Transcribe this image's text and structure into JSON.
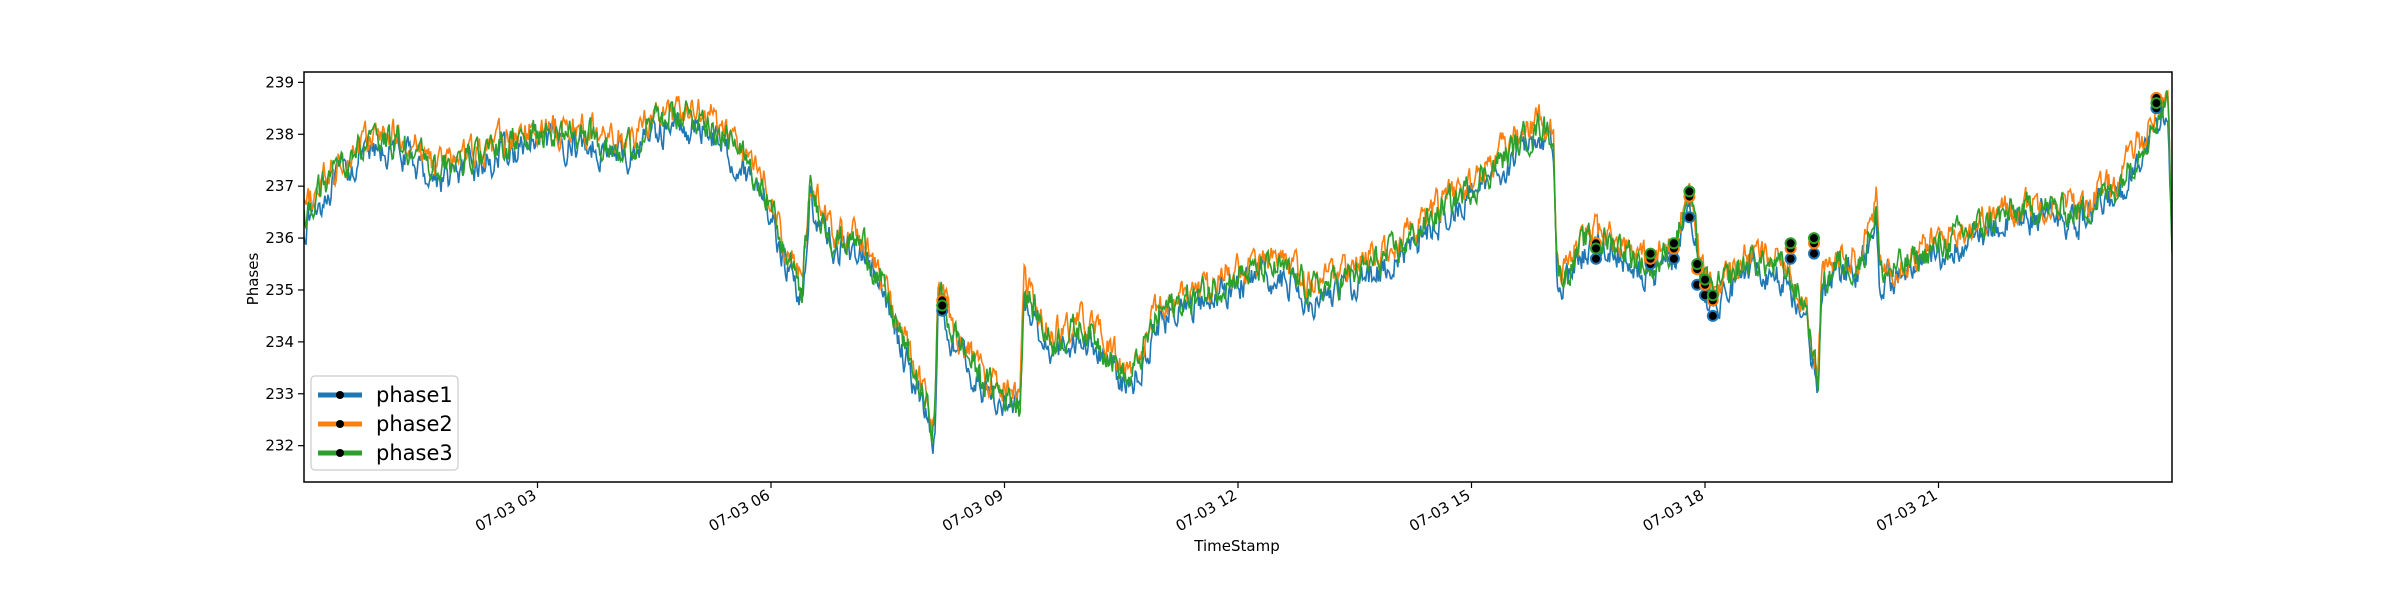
{
  "chart_data": {
    "type": "line",
    "title": "",
    "xlabel": "TimeStamp",
    "ylabel": "Phases",
    "x_ticks": [
      "07-03 03",
      "07-03 06",
      "07-03 09",
      "07-03 12",
      "07-03 15",
      "07-03 18",
      "07-03 21"
    ],
    "x_tick_hours": [
      3,
      6,
      9,
      12,
      15,
      18,
      21
    ],
    "xlim_hours": [
      0.0,
      24.0
    ],
    "y_ticks": [
      232,
      233,
      234,
      235,
      236,
      237,
      238,
      239
    ],
    "ylim": [
      231.3,
      239.2
    ],
    "grid": false,
    "legend_position": "lower-left",
    "series": [
      {
        "name": "phase1",
        "color": "#1f77b4",
        "offset": -0.18,
        "x_hours": [
          0.0,
          0.3,
          0.7,
          1.2,
          1.7,
          2.3,
          3.0,
          3.6,
          4.2,
          4.4,
          4.7,
          5.2,
          5.6,
          5.9,
          6.2,
          6.4,
          6.5,
          6.8,
          7.2,
          7.6,
          8.1,
          8.15,
          8.3,
          8.7,
          9.2,
          9.25,
          9.6,
          10.0,
          10.3,
          10.6,
          11.0,
          11.5,
          12.0,
          12.5,
          13.0,
          13.5,
          14.0,
          14.5,
          15.0,
          15.3,
          15.6,
          15.9,
          16.05,
          16.1,
          16.2,
          16.5,
          16.9,
          17.3,
          17.6,
          17.8,
          17.95,
          18.1,
          18.3,
          18.6,
          19.0,
          19.3,
          19.45,
          19.5,
          19.7,
          20.0,
          20.2,
          20.25,
          20.6,
          21.2,
          21.8,
          22.3,
          22.8,
          23.3,
          23.6,
          23.8,
          23.95,
          24.0
        ],
        "values": [
          236.4,
          237.1,
          237.7,
          237.9,
          237.3,
          237.6,
          238.0,
          238.0,
          237.7,
          238.2,
          238.3,
          238.3,
          237.6,
          237.1,
          235.6,
          235.0,
          236.9,
          236.0,
          235.9,
          234.4,
          232.3,
          235.1,
          234.3,
          233.3,
          232.8,
          235.0,
          234.0,
          234.3,
          233.9,
          233.2,
          234.6,
          234.9,
          235.3,
          235.4,
          235.0,
          235.3,
          235.7,
          236.4,
          237.0,
          237.4,
          237.8,
          238.2,
          238.0,
          235.4,
          235.3,
          236.0,
          235.9,
          235.4,
          235.8,
          236.9,
          235.3,
          234.9,
          235.2,
          235.6,
          235.4,
          234.7,
          233.1,
          235.1,
          235.5,
          235.5,
          236.6,
          235.3,
          235.5,
          236.0,
          236.4,
          236.6,
          236.5,
          237.0,
          237.8,
          238.3,
          238.7,
          236.0
        ],
        "marker_x_hours": [
          8.2,
          16.6,
          17.3,
          17.6,
          17.8,
          17.9,
          18.0,
          18.1,
          19.1,
          19.4,
          23.8
        ],
        "marker_values": [
          234.6,
          235.6,
          235.5,
          235.6,
          236.4,
          235.1,
          234.9,
          234.5,
          235.6,
          235.7,
          238.5
        ]
      },
      {
        "name": "phase2",
        "color": "#ff7f0e",
        "offset": 0.12,
        "x_hours": [
          0.0,
          0.3,
          0.7,
          1.2,
          1.7,
          2.3,
          3.0,
          3.6,
          4.2,
          4.4,
          4.7,
          5.2,
          5.6,
          5.9,
          6.2,
          6.4,
          6.5,
          6.8,
          7.2,
          7.6,
          8.1,
          8.15,
          8.3,
          8.7,
          9.2,
          9.25,
          9.6,
          10.0,
          10.3,
          10.6,
          11.0,
          11.5,
          12.0,
          12.5,
          13.0,
          13.5,
          14.0,
          14.5,
          15.0,
          15.3,
          15.6,
          15.9,
          16.05,
          16.1,
          16.2,
          16.5,
          16.9,
          17.3,
          17.6,
          17.8,
          17.95,
          18.1,
          18.3,
          18.6,
          19.0,
          19.3,
          19.45,
          19.5,
          19.7,
          20.0,
          20.2,
          20.25,
          20.6,
          21.2,
          21.8,
          22.3,
          22.8,
          23.3,
          23.6,
          23.8,
          23.95,
          24.0
        ],
        "values": [
          236.4,
          237.1,
          237.7,
          237.9,
          237.3,
          237.6,
          238.0,
          238.0,
          237.7,
          238.2,
          238.3,
          238.3,
          237.6,
          237.1,
          235.6,
          235.0,
          236.9,
          236.0,
          235.9,
          234.4,
          232.3,
          235.1,
          234.3,
          233.3,
          232.8,
          235.0,
          234.0,
          234.3,
          233.9,
          233.2,
          234.6,
          234.9,
          235.3,
          235.4,
          235.0,
          235.3,
          235.7,
          236.4,
          237.0,
          237.4,
          237.8,
          238.2,
          238.0,
          235.4,
          235.3,
          236.0,
          235.9,
          235.4,
          235.8,
          236.9,
          235.3,
          234.9,
          235.2,
          235.6,
          235.4,
          234.7,
          233.1,
          235.1,
          235.5,
          235.5,
          236.6,
          235.3,
          235.5,
          236.0,
          236.4,
          236.6,
          236.5,
          237.0,
          237.8,
          238.3,
          238.7,
          236.0
        ],
        "marker_x_hours": [
          8.2,
          16.6,
          17.3,
          17.6,
          17.8,
          17.9,
          18.0,
          18.1,
          19.1,
          19.4,
          23.8
        ],
        "marker_values": [
          234.8,
          235.9,
          235.6,
          235.8,
          236.8,
          235.4,
          235.1,
          234.8,
          235.8,
          235.9,
          238.7
        ]
      },
      {
        "name": "phase3",
        "color": "#2ca02c",
        "offset": 0.0,
        "x_hours": [
          0.0,
          0.3,
          0.7,
          1.2,
          1.7,
          2.3,
          3.0,
          3.6,
          4.2,
          4.4,
          4.7,
          5.2,
          5.6,
          5.9,
          6.2,
          6.4,
          6.5,
          6.8,
          7.2,
          7.6,
          8.1,
          8.15,
          8.3,
          8.7,
          9.2,
          9.25,
          9.6,
          10.0,
          10.3,
          10.6,
          11.0,
          11.5,
          12.0,
          12.5,
          13.0,
          13.5,
          14.0,
          14.5,
          15.0,
          15.3,
          15.6,
          15.9,
          16.05,
          16.1,
          16.2,
          16.5,
          16.9,
          17.3,
          17.6,
          17.8,
          17.95,
          18.1,
          18.3,
          18.6,
          19.0,
          19.3,
          19.45,
          19.5,
          19.7,
          20.0,
          20.2,
          20.25,
          20.6,
          21.2,
          21.8,
          22.3,
          22.8,
          23.3,
          23.6,
          23.8,
          23.95,
          24.0
        ],
        "values": [
          236.4,
          237.1,
          237.7,
          237.9,
          237.3,
          237.6,
          238.0,
          238.0,
          237.7,
          238.2,
          238.3,
          238.3,
          237.6,
          237.1,
          235.6,
          235.0,
          236.9,
          236.0,
          235.9,
          234.4,
          232.3,
          235.1,
          234.3,
          233.3,
          232.8,
          235.0,
          234.0,
          234.3,
          233.9,
          233.2,
          234.6,
          234.9,
          235.3,
          235.4,
          235.0,
          235.3,
          235.7,
          236.4,
          237.0,
          237.4,
          237.8,
          238.2,
          238.0,
          235.4,
          235.3,
          236.0,
          235.9,
          235.4,
          235.8,
          236.9,
          235.3,
          234.9,
          235.2,
          235.6,
          235.4,
          234.7,
          233.1,
          235.1,
          235.5,
          235.5,
          236.6,
          235.3,
          235.5,
          236.0,
          236.4,
          236.6,
          236.5,
          237.0,
          237.8,
          238.3,
          238.7,
          236.0
        ],
        "marker_x_hours": [
          8.2,
          16.6,
          17.3,
          17.6,
          17.8,
          17.9,
          18.0,
          18.1,
          19.1,
          19.4,
          23.8
        ],
        "marker_values": [
          234.7,
          235.8,
          235.7,
          235.9,
          236.9,
          235.5,
          235.2,
          234.9,
          235.9,
          236.0,
          238.6
        ]
      }
    ]
  }
}
